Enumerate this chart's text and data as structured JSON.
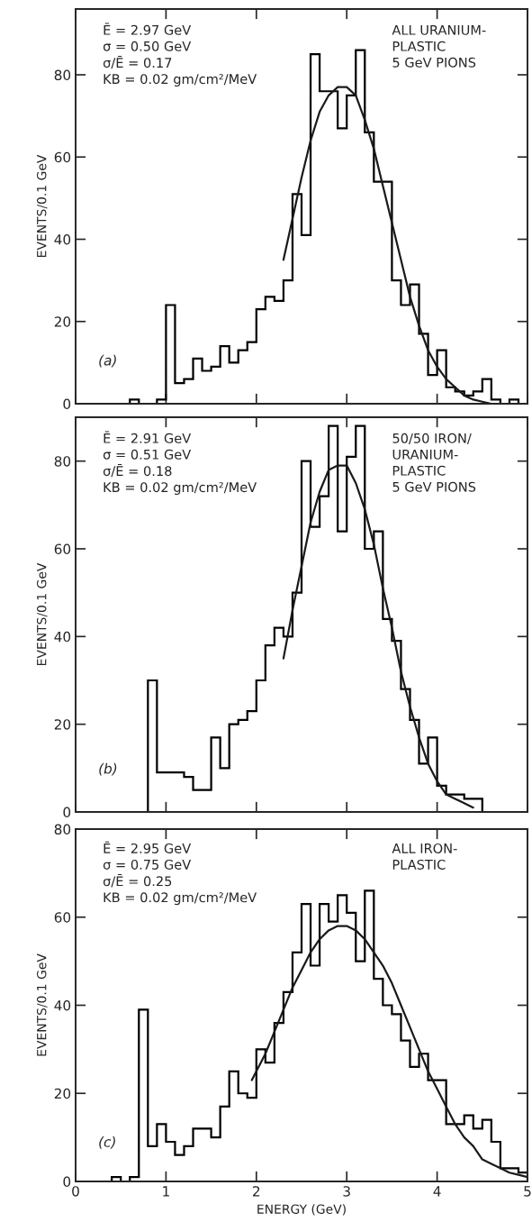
{
  "chart_data": [
    {
      "type": "histogram",
      "ylabel": "EVENTS/0.1 GeV",
      "xlim": [
        0,
        5
      ],
      "xticks": [
        0,
        1,
        2,
        3,
        4,
        5
      ],
      "ylim": [
        0,
        96
      ],
      "yticks": [
        0,
        20,
        40,
        60,
        80
      ],
      "tick_labels": "y",
      "grid": false,
      "legend": false,
      "annotations": [
        "Ē = 2.97 GeV\nσ = 0.50 GeV\nσ/Ē = 0.17\nKB = 0.02 gm/cm²/MeV",
        "ALL URANIUM-\nPLASTIC\n5 GeV PIONS",
        "(a)"
      ],
      "color": "#000000",
      "bins": [
        0.6,
        0.7,
        0.8,
        0.9,
        1.0,
        1.1,
        1.2,
        1.3,
        1.4,
        1.5,
        1.6,
        1.7,
        1.8,
        1.9,
        2.0,
        2.1,
        2.2,
        2.3,
        2.4,
        2.5,
        2.6,
        2.7,
        2.8,
        2.9,
        3.0,
        3.1,
        3.2,
        3.3,
        3.4,
        3.5,
        3.6,
        3.7,
        3.8,
        3.9,
        4.0,
        4.1,
        4.2,
        4.3,
        4.4,
        4.5,
        4.6,
        4.7,
        4.8,
        4.9
      ],
      "values": [
        1,
        0,
        0,
        1,
        24,
        5,
        6,
        11,
        8,
        9,
        14,
        10,
        13,
        15,
        23,
        26,
        25,
        30,
        51,
        41,
        85,
        76,
        76,
        67,
        75,
        86,
        66,
        54,
        54,
        30,
        24,
        29,
        17,
        7,
        13,
        4,
        3,
        2,
        3,
        6,
        1,
        0,
        1
      ],
      "series": [
        {
          "type": "line",
          "color": "#1a1a1a",
          "x": [
            2.3,
            2.4,
            2.5,
            2.6,
            2.7,
            2.8,
            2.9,
            3.0,
            3.1,
            3.2,
            3.3,
            3.4,
            3.5,
            3.6,
            3.7,
            3.8,
            3.9,
            4.0,
            4.1,
            4.2,
            4.3,
            4.4,
            4.5,
            4.6
          ],
          "values": [
            35,
            45,
            55,
            64,
            71,
            75,
            77,
            77,
            75,
            69,
            62,
            53,
            44,
            35,
            26,
            19,
            13,
            9,
            6,
            4,
            2,
            1,
            0.5,
            0
          ]
        }
      ]
    },
    {
      "type": "histogram",
      "ylabel": "EVENTS/0.1 GeV",
      "xlim": [
        0,
        5
      ],
      "xticks": [
        0,
        1,
        2,
        3,
        4,
        5
      ],
      "ylim": [
        0,
        90
      ],
      "yticks": [
        0,
        20,
        40,
        60,
        80
      ],
      "tick_labels": "y",
      "grid": false,
      "legend": false,
      "annotations": [
        "Ē = 2.91 GeV\nσ = 0.51 GeV\nσ/Ē = 0.18\nKB = 0.02 gm/cm²/MeV",
        "50/50 IRON/\nURANIUM-\nPLASTIC\n5 GeV PIONS",
        "(b)"
      ],
      "color": "#000000",
      "bins": [
        0.8,
        0.9,
        1.0,
        1.1,
        1.2,
        1.3,
        1.4,
        1.5,
        1.6,
        1.7,
        1.8,
        1.9,
        2.0,
        2.1,
        2.2,
        2.3,
        2.4,
        2.5,
        2.6,
        2.7,
        2.8,
        2.9,
        3.0,
        3.1,
        3.2,
        3.3,
        3.4,
        3.5,
        3.6,
        3.7,
        3.8,
        3.9,
        4.0,
        4.1,
        4.2,
        4.3,
        4.4,
        4.5
      ],
      "values": [
        30,
        9,
        9,
        9,
        8,
        5,
        5,
        17,
        10,
        20,
        21,
        23,
        30,
        38,
        42,
        40,
        50,
        80,
        65,
        72,
        88,
        64,
        81,
        88,
        60,
        64,
        44,
        39,
        28,
        21,
        11,
        17,
        6,
        4,
        4,
        3,
        3
      ],
      "series": [
        {
          "type": "line",
          "color": "#1a1a1a",
          "x": [
            2.3,
            2.4,
            2.5,
            2.6,
            2.7,
            2.8,
            2.9,
            3.0,
            3.1,
            3.2,
            3.3,
            3.4,
            3.5,
            3.6,
            3.7,
            3.8,
            3.9,
            4.0,
            4.1,
            4.2,
            4.3,
            4.4
          ],
          "values": [
            35,
            46,
            56,
            66,
            73,
            78,
            79,
            79,
            75,
            69,
            61,
            51,
            42,
            32,
            24,
            17,
            11,
            7,
            4,
            3,
            2,
            1
          ]
        }
      ]
    },
    {
      "type": "histogram",
      "ylabel": "EVENTS/0.1 GeV",
      "xlabel": "ENERGY (GeV)",
      "xlim": [
        0,
        5
      ],
      "xticks": [
        0,
        1,
        2,
        3,
        4,
        5
      ],
      "ylim": [
        0,
        80
      ],
      "yticks": [
        0,
        20,
        40,
        60,
        80
      ],
      "grid": false,
      "legend": false,
      "annotations": [
        "Ē = 2.95 GeV\nσ = 0.75 GeV\nσ/Ē = 0.25\nKB = 0.02 gm/cm²/MeV",
        "ALL IRON-\nPLASTIC",
        "(c)"
      ],
      "color": "#000000",
      "bins": [
        0.4,
        0.5,
        0.6,
        0.7,
        0.8,
        0.9,
        1.0,
        1.1,
        1.2,
        1.3,
        1.4,
        1.5,
        1.6,
        1.7,
        1.8,
        1.9,
        2.0,
        2.1,
        2.2,
        2.3,
        2.4,
        2.5,
        2.6,
        2.7,
        2.8,
        2.9,
        3.0,
        3.1,
        3.2,
        3.3,
        3.4,
        3.5,
        3.6,
        3.7,
        3.8,
        3.9,
        4.0,
        4.1,
        4.2,
        4.3,
        4.4,
        4.5,
        4.6,
        4.7,
        4.8,
        4.9,
        5.0
      ],
      "values": [
        1,
        0,
        1,
        39,
        8,
        13,
        9,
        6,
        8,
        12,
        12,
        10,
        17,
        25,
        20,
        19,
        30,
        27,
        36,
        43,
        52,
        63,
        49,
        63,
        59,
        65,
        61,
        50,
        66,
        46,
        40,
        38,
        32,
        26,
        29,
        23,
        23,
        13,
        13,
        15,
        12,
        14,
        9,
        3,
        3,
        2
      ],
      "series": [
        {
          "type": "line",
          "color": "#1a1a1a",
          "x": [
            1.95,
            2.0,
            2.1,
            2.2,
            2.3,
            2.4,
            2.5,
            2.6,
            2.7,
            2.8,
            2.9,
            3.0,
            3.1,
            3.2,
            3.3,
            3.4,
            3.5,
            3.6,
            3.7,
            3.8,
            3.9,
            4.0,
            4.1,
            4.2,
            4.3,
            4.4,
            4.5,
            4.6,
            4.7,
            4.8,
            4.9,
            5.0
          ],
          "values": [
            23,
            25,
            29,
            34,
            39,
            44,
            48,
            52,
            55,
            57,
            58,
            58,
            57,
            55,
            52,
            49,
            45,
            40,
            35,
            30,
            25,
            21,
            17,
            13,
            10,
            8,
            5,
            4,
            3,
            2,
            1.5,
            1
          ]
        }
      ]
    }
  ]
}
